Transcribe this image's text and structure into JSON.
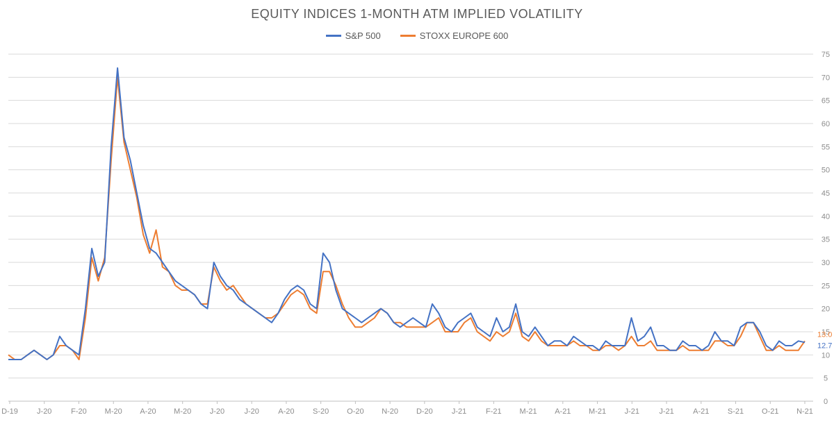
{
  "chart_data": {
    "type": "line",
    "title": "EQUITY INDICES 1-MONTH ATM IMPLIED VOLATILITY",
    "xlabel": "",
    "ylabel": "",
    "ylim": [
      0,
      75
    ],
    "y_ticks": [
      0,
      5,
      10,
      15,
      20,
      25,
      30,
      35,
      40,
      45,
      50,
      55,
      60,
      65,
      70,
      75
    ],
    "y_axis_position": "right",
    "grid": true,
    "legend_position": "top-center",
    "x_tick_labels": [
      "D-19",
      "J-20",
      "F-20",
      "M-20",
      "A-20",
      "M-20",
      "J-20",
      "J-20",
      "A-20",
      "S-20",
      "O-20",
      "N-20",
      "D-20",
      "J-21",
      "F-21",
      "M-21",
      "A-21",
      "M-21",
      "J-21",
      "J-21",
      "A-21",
      "S-21",
      "O-21",
      "N-21"
    ],
    "series": [
      {
        "name": "S&P 500",
        "color": "#4472C4",
        "end_label": "12.7",
        "values": [
          9,
          9,
          9,
          10,
          11,
          10,
          9,
          10,
          14,
          12,
          11,
          10,
          20,
          33,
          27,
          30,
          55,
          72,
          57,
          52,
          45,
          38,
          33,
          32,
          30,
          28,
          26,
          25,
          24,
          23,
          21,
          20,
          30,
          27,
          25,
          24,
          22,
          21,
          20,
          19,
          18,
          17,
          19,
          22,
          24,
          25,
          24,
          21,
          20,
          32,
          30,
          24,
          20,
          19,
          18,
          17,
          18,
          19,
          20,
          19,
          17,
          16,
          17,
          18,
          17,
          16,
          21,
          19,
          16,
          15,
          17,
          18,
          19,
          16,
          15,
          14,
          18,
          15,
          16,
          21,
          15,
          14,
          16,
          14,
          12,
          13,
          13,
          12,
          14,
          13,
          12,
          12,
          11,
          13,
          12,
          12,
          12,
          18,
          13,
          14,
          16,
          12,
          12,
          11,
          11,
          13,
          12,
          12,
          11,
          12,
          15,
          13,
          13,
          12,
          16,
          17,
          17,
          15,
          12,
          11,
          13,
          12,
          12,
          13,
          12.7
        ]
      },
      {
        "name": "STOXX EUROPE 600",
        "color": "#ED7D31",
        "end_label": "13.0",
        "values": [
          10,
          9,
          9,
          10,
          11,
          10,
          9,
          10,
          12,
          12,
          11,
          9,
          18,
          31,
          26,
          31,
          52,
          70,
          56,
          50,
          44,
          36,
          32,
          37,
          29,
          28,
          25,
          24,
          24,
          23,
          21,
          21,
          29,
          26,
          24,
          25,
          23,
          21,
          20,
          19,
          18,
          18,
          19,
          21,
          23,
          24,
          23,
          20,
          19,
          28,
          28,
          25,
          21,
          18,
          16,
          16,
          17,
          18,
          20,
          19,
          17,
          17,
          16,
          16,
          16,
          16,
          17,
          18,
          15,
          15,
          15,
          17,
          18,
          15,
          14,
          13,
          15,
          14,
          15,
          19,
          14,
          13,
          15,
          13,
          12,
          12,
          12,
          12,
          13,
          12,
          12,
          11,
          11,
          12,
          12,
          11,
          12,
          14,
          12,
          12,
          13,
          11,
          11,
          11,
          11,
          12,
          11,
          11,
          11,
          11,
          13,
          13,
          12,
          12,
          14,
          17,
          17,
          14,
          11,
          11,
          12,
          11,
          11,
          11,
          13.0
        ]
      }
    ]
  }
}
